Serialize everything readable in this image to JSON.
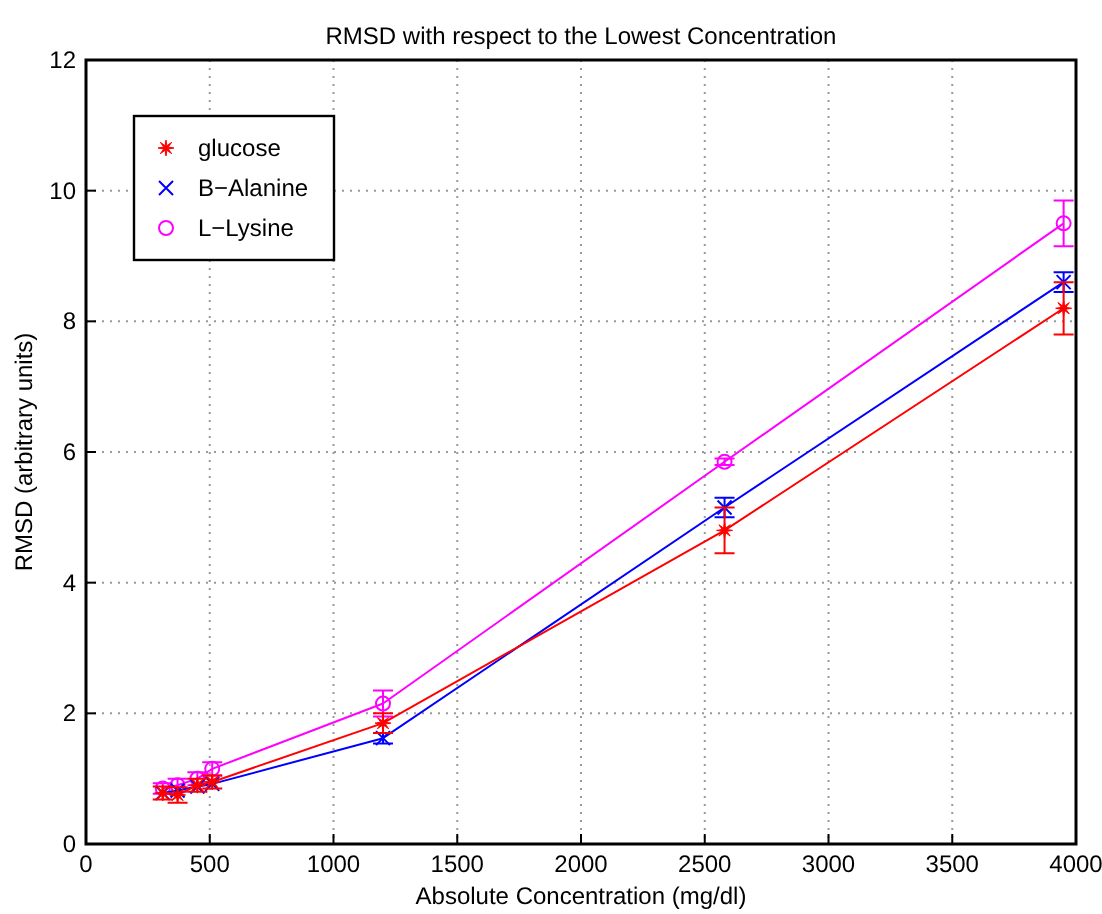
{
  "chart_data": {
    "type": "line",
    "title": "RMSD with respect to the Lowest Concentration",
    "xlabel": "Absolute Concentration (mg/dl)",
    "ylabel": "RMSD (arbitrary units)",
    "x": [
      310,
      370,
      450,
      510,
      1200,
      2580,
      3950
    ],
    "series": [
      {
        "name": "glucose",
        "color": "#ff0000",
        "marker": "star",
        "values": [
          0.78,
          0.75,
          0.9,
          0.95,
          1.85,
          4.8,
          8.2
        ],
        "errors": [
          0.1,
          0.12,
          0.1,
          0.1,
          0.15,
          0.35,
          0.4
        ]
      },
      {
        "name": "B−Alanine",
        "color": "#0000ff",
        "marker": "cross",
        "values": [
          0.78,
          0.82,
          0.88,
          0.92,
          1.62,
          5.15,
          8.6
        ],
        "errors": [
          null,
          null,
          null,
          null,
          0.08,
          0.15,
          0.15
        ]
      },
      {
        "name": "L−Lysine",
        "color": "#ff00ff",
        "marker": "circle",
        "values": [
          0.85,
          0.9,
          1.0,
          1.15,
          2.15,
          5.85,
          9.5
        ],
        "errors": [
          0.08,
          0.1,
          0.1,
          0.1,
          0.2,
          0.05,
          0.35
        ]
      }
    ],
    "xlim": [
      0,
      4000
    ],
    "xticks": [
      0,
      500,
      1000,
      1500,
      2000,
      2500,
      3000,
      3500,
      4000
    ],
    "ylim": [
      0,
      12
    ],
    "yticks": [
      0,
      2,
      4,
      6,
      8,
      10,
      12
    ],
    "grid": true,
    "legend": "top left",
    "line_style": "solid"
  }
}
